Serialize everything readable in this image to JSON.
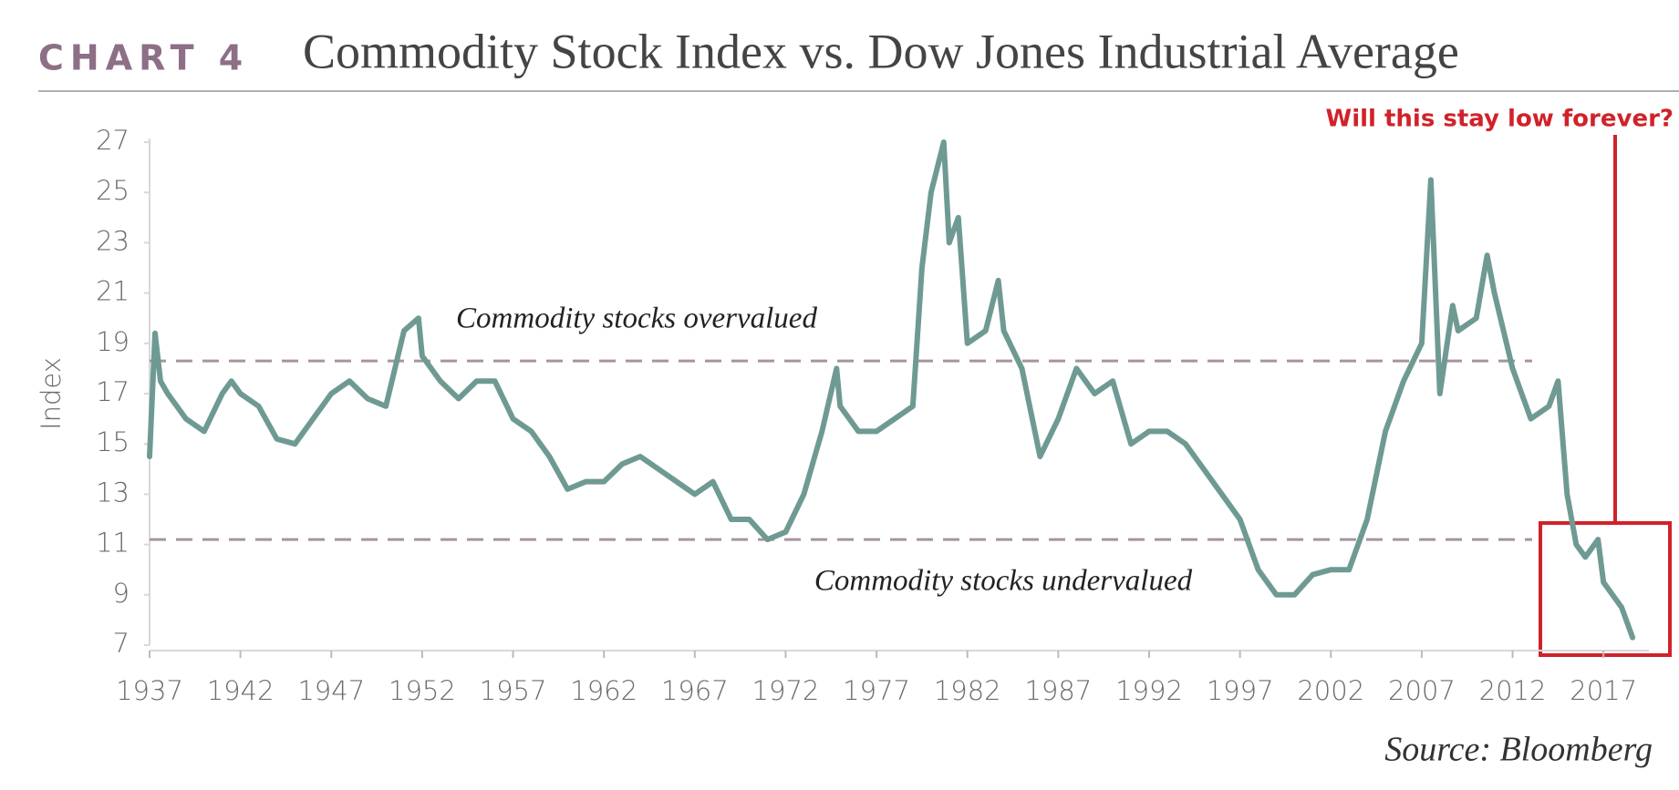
{
  "chart_data": {
    "type": "line",
    "chart_label": "CHART 4",
    "title": "Commodity Stock Index vs. Dow Jones Industrial Average",
    "y_label": "Index",
    "source": "Source: Bloomberg",
    "annotation": "Will this stay low forever?",
    "reference_lines": [
      {
        "value": 18.3,
        "label": "Commodity stocks overvalued"
      },
      {
        "value": 11.2,
        "label": "Commodity stocks undervalued"
      }
    ],
    "x": [
      1937.0,
      1937.3,
      1937.6,
      1938,
      1939,
      1940,
      1941,
      1941.5,
      1942,
      1943,
      1944,
      1945,
      1946,
      1947,
      1948,
      1949,
      1950,
      1951,
      1951.8,
      1952,
      1953,
      1954,
      1955,
      1956,
      1957,
      1958,
      1959,
      1960,
      1961,
      1962,
      1963,
      1964,
      1965,
      1966,
      1967,
      1968,
      1969,
      1970,
      1971,
      1972,
      1973,
      1974,
      1974.8,
      1975,
      1976,
      1977,
      1978,
      1979,
      1979.5,
      1980,
      1980.7,
      1981,
      1981.5,
      1982,
      1983,
      1983.7,
      1984,
      1985,
      1986,
      1987,
      1988,
      1989,
      1990,
      1991,
      1992,
      1993,
      1994,
      1995,
      1996,
      1997,
      1998,
      1999,
      2000,
      2001,
      2002,
      2003,
      2004,
      2005,
      2006,
      2007,
      2007.5,
      2008,
      2008.7,
      2009,
      2010,
      2010.6,
      2011,
      2012,
      2013,
      2014,
      2014.5,
      2015,
      2015.5,
      2016,
      2016.7,
      2017,
      2018,
      2018.6
    ],
    "series": [
      {
        "name": "Commodity Stock Index vs. DJIA",
        "color": "#6f9a94",
        "values": [
          14.5,
          19.4,
          17.5,
          17,
          16,
          15.5,
          17,
          17.5,
          17,
          16.5,
          15.2,
          15,
          16,
          17,
          17.5,
          16.8,
          16.5,
          19.5,
          20,
          18.5,
          17.5,
          16.8,
          17.5,
          17.5,
          16,
          15.5,
          14.5,
          13.2,
          13.5,
          13.5,
          14.2,
          14.5,
          14,
          13.5,
          13,
          13.5,
          12,
          12,
          11.2,
          11.5,
          13,
          15.5,
          18,
          16.5,
          15.5,
          15.5,
          16,
          16.5,
          22,
          25,
          27,
          23,
          24,
          19,
          19.5,
          21.5,
          19.5,
          18,
          14.5,
          16,
          18,
          17,
          17.5,
          15,
          15.5,
          15.5,
          15,
          14,
          13,
          12,
          10,
          9,
          9,
          9.8,
          10,
          10,
          12,
          15.5,
          17.5,
          19,
          25.5,
          17,
          20.5,
          19.5,
          20,
          22.5,
          21,
          18,
          16,
          16.5,
          17.5,
          13,
          11,
          10.5,
          11.2,
          9.5,
          8.5,
          7.3
        ]
      }
    ],
    "xlim": [
      1937,
      2019.5
    ],
    "ylim": [
      7,
      27
    ],
    "xticks": [
      1937,
      1942,
      1947,
      1952,
      1957,
      1962,
      1967,
      1972,
      1977,
      1982,
      1987,
      1992,
      1997,
      2002,
      2007,
      2012,
      2017
    ],
    "yticks": [
      7,
      9,
      11,
      13,
      15,
      17,
      19,
      21,
      23,
      25,
      27
    ]
  }
}
